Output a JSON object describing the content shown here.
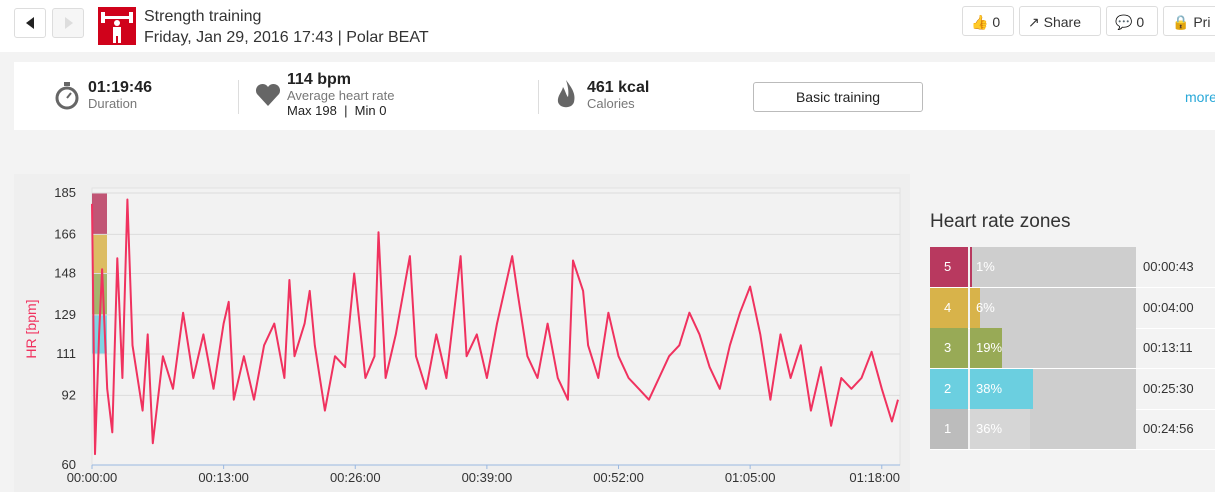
{
  "header": {
    "title": "Strength training",
    "subtitle": "Friday, Jan 29, 2016 17:43 | Polar BEAT",
    "likes": "0",
    "share": "Share",
    "comments": "0",
    "privacy": "Pri"
  },
  "summary": {
    "duration": "01:19:46",
    "duration_label": "Duration",
    "avg_hr": "114 bpm",
    "avg_hr_label": "Average heart rate",
    "hr_range": "Max 198  |  Min 0",
    "calories": "461 kcal",
    "calories_label": "Calories",
    "button": "Basic training",
    "more": "more"
  },
  "chart_data": {
    "type": "line",
    "y_label": "HR [bpm]",
    "color": "#f0325f",
    "x": [
      0,
      0.3,
      0.7,
      1,
      1.5,
      2,
      2.5,
      3,
      3.5,
      4,
      5,
      5.5,
      6,
      7,
      8,
      9,
      10,
      11,
      12,
      13,
      13.5,
      14,
      15,
      16,
      17,
      18,
      19,
      19.5,
      20,
      21,
      21.5,
      22,
      23,
      24,
      25,
      25.9,
      27,
      27.9,
      28.3,
      29,
      30,
      31.4,
      32,
      33,
      34,
      35,
      36.4,
      37,
      38,
      39,
      40,
      41.5,
      42,
      43,
      44,
      45,
      46,
      47,
      47.5,
      48.5,
      49,
      50,
      51,
      52,
      53,
      54,
      55,
      56,
      57,
      58,
      59,
      60,
      61,
      62,
      63,
      64,
      65,
      66,
      67,
      68,
      69,
      70,
      71,
      72,
      73,
      74,
      75,
      76,
      77,
      78,
      79,
      79.6
    ],
    "values": [
      180,
      65,
      120,
      150,
      95,
      75,
      155,
      100,
      182,
      115,
      85,
      120,
      70,
      110,
      95,
      130,
      100,
      120,
      95,
      125,
      135,
      90,
      110,
      90,
      115,
      125,
      100,
      145,
      110,
      125,
      140,
      115,
      85,
      110,
      105,
      148,
      100,
      110,
      167,
      100,
      120,
      156,
      110,
      95,
      120,
      100,
      156,
      110,
      120,
      100,
      125,
      156,
      140,
      110,
      100,
      125,
      100,
      90,
      154,
      140,
      115,
      100,
      130,
      110,
      100,
      95,
      90,
      100,
      110,
      115,
      130,
      120,
      105,
      95,
      115,
      130,
      142,
      120,
      90,
      120,
      100,
      115,
      85,
      105,
      78,
      100,
      95,
      100,
      112,
      95,
      80,
      90
    ],
    "xlim": [
      0,
      79.8
    ],
    "xticks": [
      {
        "value": 0,
        "label": "00:00:00"
      },
      {
        "value": 13,
        "label": "00:13:00"
      },
      {
        "value": 26,
        "label": "00:26:00"
      },
      {
        "value": 39,
        "label": "00:39:00"
      },
      {
        "value": 52,
        "label": "00:52:00"
      },
      {
        "value": 65,
        "label": "01:05:00"
      },
      {
        "value": 78,
        "label": "01:18:00"
      }
    ],
    "ylim": [
      60,
      185
    ],
    "yticks": [
      60,
      92,
      111,
      129,
      148,
      166,
      185
    ],
    "grid": true
  },
  "zones": {
    "title": "Heart rate zones",
    "rows": [
      {
        "zone": "5",
        "percent": 1,
        "percent_label": "1%",
        "time": "00:00:43",
        "color": "#b8395f"
      },
      {
        "zone": "4",
        "percent": 6,
        "percent_label": "6%",
        "time": "00:04:00",
        "color": "#d8b34a"
      },
      {
        "zone": "3",
        "percent": 19,
        "percent_label": "19%",
        "time": "00:13:11",
        "color": "#98aa56"
      },
      {
        "zone": "2",
        "percent": 38,
        "percent_label": "38%",
        "time": "00:25:30",
        "color": "#6bcfe0"
      },
      {
        "zone": "1",
        "percent": 36,
        "percent_label": "36%",
        "time": "00:24:56",
        "color": "#d6d6d6"
      }
    ]
  }
}
